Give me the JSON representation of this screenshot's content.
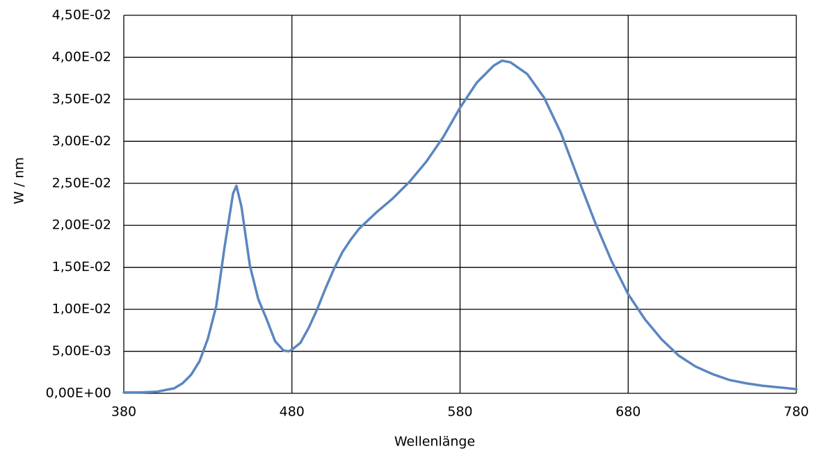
{
  "chart_data": {
    "type": "line",
    "x_label": "Wellenlänge",
    "y_label": "W / nm",
    "color": "#5a86c0",
    "x": [
      380,
      390,
      400,
      410,
      415,
      420,
      425,
      430,
      435,
      440,
      445,
      447,
      450,
      455,
      460,
      465,
      470,
      475,
      478,
      480,
      485,
      490,
      495,
      500,
      505,
      510,
      515,
      520,
      530,
      540,
      550,
      560,
      570,
      580,
      590,
      600,
      605,
      610,
      620,
      630,
      640,
      650,
      660,
      670,
      680,
      690,
      700,
      710,
      720,
      730,
      740,
      750,
      760,
      770,
      780
    ],
    "values": [
      0.0001,
      0.0001,
      0.0002,
      0.0006,
      0.0012,
      0.0022,
      0.0038,
      0.0065,
      0.0104,
      0.0175,
      0.0238,
      0.0247,
      0.0222,
      0.0152,
      0.0112,
      0.0088,
      0.0062,
      0.0051,
      0.005,
      0.0052,
      0.006,
      0.0078,
      0.01,
      0.0125,
      0.0148,
      0.0168,
      0.0183,
      0.0196,
      0.0215,
      0.0232,
      0.0252,
      0.0276,
      0.0305,
      0.034,
      0.037,
      0.039,
      0.0396,
      0.0394,
      0.038,
      0.0352,
      0.031,
      0.0257,
      0.0205,
      0.0158,
      0.0118,
      0.0088,
      0.0064,
      0.0045,
      0.0032,
      0.0023,
      0.0016,
      0.0012,
      0.0009,
      0.0007,
      0.0005
    ],
    "xlim": [
      380,
      780
    ],
    "xticks": [
      380,
      480,
      580,
      680,
      780
    ],
    "ylim": [
      0,
      0.045
    ],
    "yticks": [
      {
        "value": 0,
        "label": "0,00E+00"
      },
      {
        "value": 0.005,
        "label": "5,00E-03"
      },
      {
        "value": 0.01,
        "label": "1,00E-02"
      },
      {
        "value": 0.015,
        "label": "1,50E-02"
      },
      {
        "value": 0.02,
        "label": "2,00E-02"
      },
      {
        "value": 0.025,
        "label": "2,50E-02"
      },
      {
        "value": 0.03,
        "label": "3,00E-02"
      },
      {
        "value": 0.035,
        "label": "3,50E-02"
      },
      {
        "value": 0.04,
        "label": "4,00E-02"
      },
      {
        "value": 0.045,
        "label": "4,50E-02"
      }
    ],
    "grid": true
  }
}
